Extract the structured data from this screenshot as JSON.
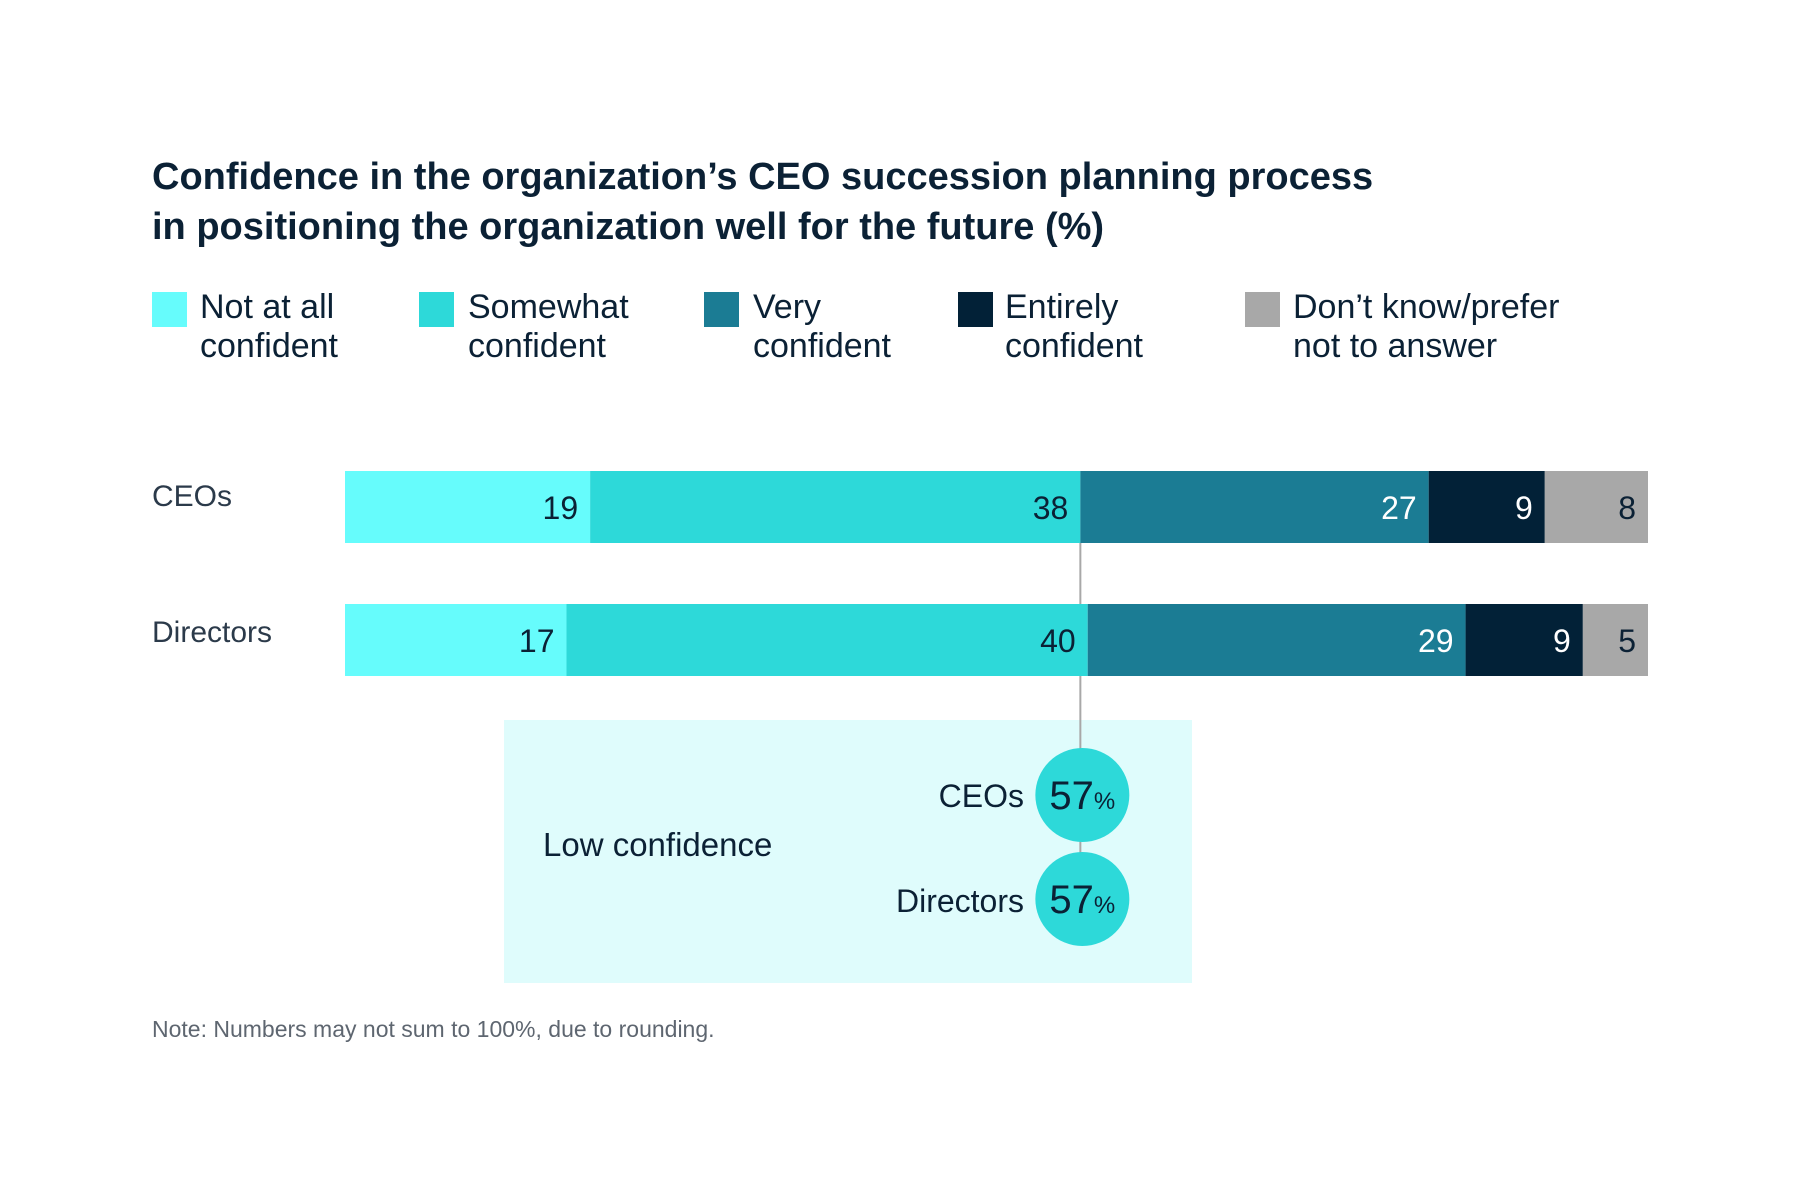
{
  "chart_data": {
    "type": "bar",
    "orientation": "horizontal-stacked",
    "title": "Confidence in the organization’s CEO succession planning process in positioning the organization well for the future (%)",
    "title_lines": [
      "Confidence in the organization’s CEO succession planning process",
      "in positioning the organization well for the future (%)"
    ],
    "categories": [
      "CEOs",
      "Directors"
    ],
    "series": [
      {
        "name": "Not at all confident",
        "name_lines": [
          "Not at all",
          "confident"
        ],
        "color": "#66fcfc",
        "label_color": "#0b2135",
        "values": [
          19,
          17
        ]
      },
      {
        "name": "Somewhat confident",
        "name_lines": [
          "Somewhat",
          "confident"
        ],
        "color": "#2dd9d9",
        "label_color": "#0b2135",
        "values": [
          38,
          40
        ]
      },
      {
        "name": "Very confident",
        "name_lines": [
          "Very",
          "confident"
        ],
        "color": "#1b7c94",
        "label_color": "#ffffff",
        "values": [
          27,
          29
        ]
      },
      {
        "name": "Entirely confident",
        "name_lines": [
          "Entirely",
          "confident"
        ],
        "color": "#022137",
        "label_color": "#ffffff",
        "values": [
          9,
          9
        ]
      },
      {
        "name": "Don’t know/prefer not to answer",
        "name_lines": [
          "Don’t know/prefer",
          "not to answer"
        ],
        "color": "#a8a8a8",
        "label_color": "#0b2135",
        "values": [
          8,
          5
        ]
      }
    ],
    "legend_position": "top",
    "grid": false,
    "annotation": {
      "title": "Low confidence",
      "items": [
        {
          "label": "CEOs",
          "value": "57",
          "unit": "%"
        },
        {
          "label": "Directors",
          "value": "57",
          "unit": "%"
        }
      ],
      "color": "#2dd9d9",
      "background": "#dffcfc"
    },
    "note": "Note: Numbers may not sum to 100%, due to rounding."
  }
}
